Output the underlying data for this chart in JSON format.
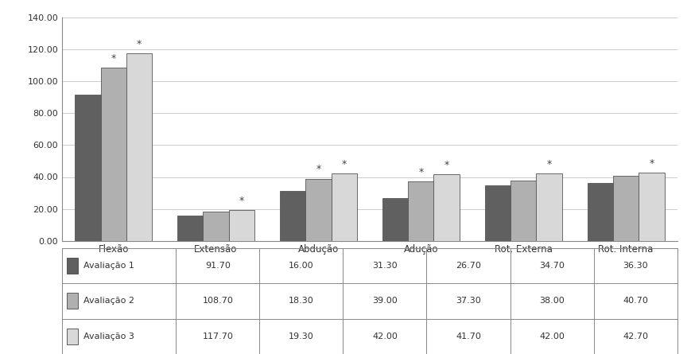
{
  "categories": [
    "Flexão",
    "Extensão",
    "Abdução",
    "Adução",
    "Rot. Externa",
    "Rot. Interna"
  ],
  "series": [
    {
      "label": "Avaliação 1",
      "values": [
        91.7,
        16.0,
        31.3,
        26.7,
        34.7,
        36.3
      ],
      "color": "#606060"
    },
    {
      "label": "Avaliação 2",
      "values": [
        108.7,
        18.3,
        39.0,
        37.3,
        38.0,
        40.7
      ],
      "color": "#b0b0b0"
    },
    {
      "label": "Avaliação 3",
      "values": [
        117.7,
        19.3,
        42.0,
        41.7,
        42.0,
        42.7
      ],
      "color": "#d8d8d8"
    }
  ],
  "ylim": [
    0,
    140
  ],
  "yticks": [
    0,
    20,
    40,
    60,
    80,
    100,
    120,
    140
  ],
  "ytick_labels": [
    "0.00",
    "20.00",
    "40.00",
    "60.00",
    "80.00",
    "100.00",
    "120.00",
    "140.00"
  ],
  "star_annotations": {
    "Flexão": [
      1,
      2
    ],
    "Extensão": [
      2
    ],
    "Abdução": [
      1,
      2
    ],
    "Adução": [
      1,
      2
    ],
    "Rot. Externa": [
      2
    ],
    "Rot. Interna": [
      2
    ]
  },
  "bar_width": 0.25,
  "background_color": "#ffffff",
  "grid_color": "#cccccc",
  "legend_square_colors": [
    "#606060",
    "#b0b0b0",
    "#d8d8d8"
  ]
}
